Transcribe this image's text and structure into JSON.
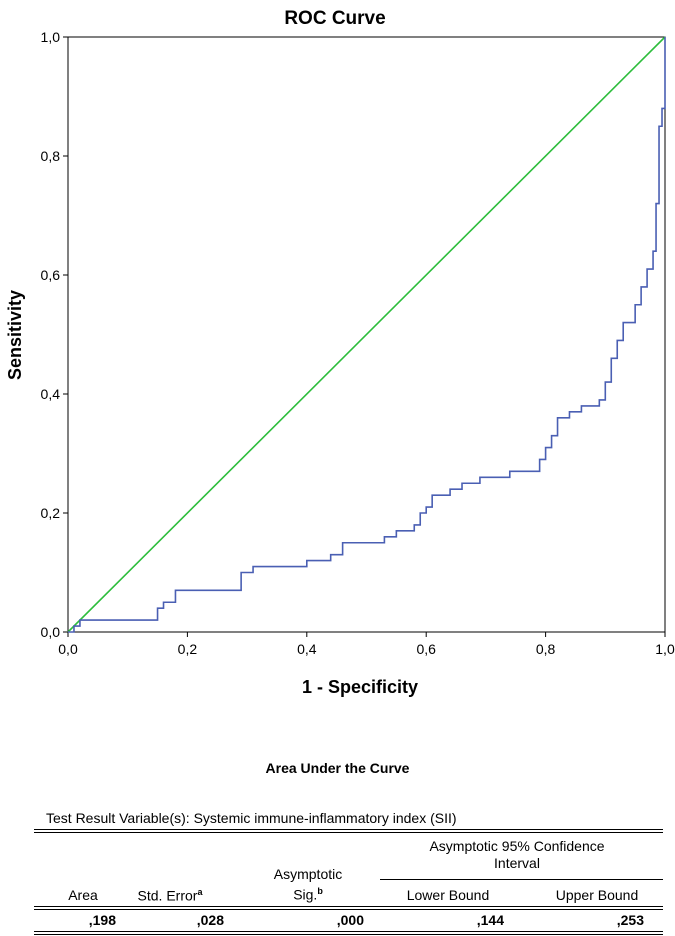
{
  "chart_data": {
    "type": "line",
    "title": "ROC Curve",
    "xlabel": "1 - Specificity",
    "ylabel": "Sensitivity",
    "xlim": [
      0,
      1
    ],
    "ylim": [
      0,
      1
    ],
    "xticks": [
      "0,0",
      "0,2",
      "0,4",
      "0,6",
      "0,8",
      "1,0"
    ],
    "yticks": [
      "0,0",
      "0,2",
      "0,4",
      "0,6",
      "0,8",
      "1,0"
    ],
    "grid": false,
    "series": [
      {
        "color": "#4a5fb3",
        "step": true,
        "x": [
          0,
          0.01,
          0.02,
          0.14,
          0.15,
          0.16,
          0.18,
          0.27,
          0.29,
          0.31,
          0.4,
          0.44,
          0.46,
          0.52,
          0.53,
          0.55,
          0.58,
          0.59,
          0.6,
          0.61,
          0.64,
          0.66,
          0.69,
          0.74,
          0.79,
          0.8,
          0.81,
          0.82,
          0.84,
          0.86,
          0.87,
          0.89,
          0.9,
          0.91,
          0.92,
          0.93,
          0.95,
          0.96,
          0.97,
          0.98,
          0.985,
          0.99,
          0.995,
          1.0
        ],
        "y": [
          0,
          0.01,
          0.02,
          0.02,
          0.04,
          0.05,
          0.07,
          0.07,
          0.1,
          0.11,
          0.12,
          0.13,
          0.15,
          0.15,
          0.16,
          0.17,
          0.18,
          0.2,
          0.21,
          0.23,
          0.24,
          0.25,
          0.26,
          0.27,
          0.29,
          0.31,
          0.33,
          0.36,
          0.37,
          0.38,
          0.38,
          0.39,
          0.42,
          0.46,
          0.49,
          0.52,
          0.55,
          0.58,
          0.61,
          0.64,
          0.72,
          0.85,
          0.88,
          1.0
        ]
      },
      {
        "color": "#2dbd3c",
        "x": [
          0,
          1
        ],
        "y": [
          0,
          1
        ]
      }
    ]
  },
  "auc_table": {
    "title": "Area Under the Curve",
    "test_variable": "Test Result Variable(s): Systemic immune-inflammatory index (SII)",
    "headers": {
      "area": "Area",
      "std_error": "Std. Error",
      "std_error_sup": "a",
      "asym_sig_1": "Asymptotic",
      "asym_sig_2": "Sig.",
      "asym_sig_sup": "b",
      "ci_1": "Asymptotic 95% Confidence",
      "ci_2": "Interval",
      "lower": "Lower Bound",
      "upper": "Upper Bound"
    },
    "row": {
      "area": ",198",
      "std_error": ",028",
      "asym_sig": ",000",
      "lower": ",144",
      "upper": ",253"
    }
  }
}
